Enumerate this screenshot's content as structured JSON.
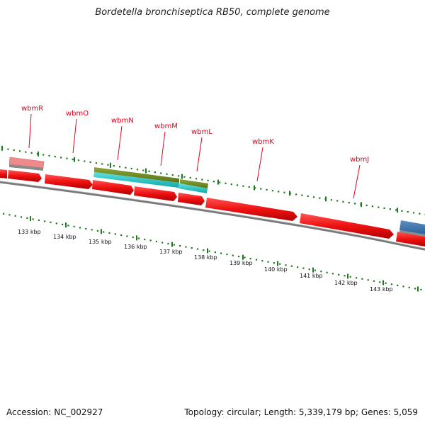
{
  "title": "Bordetella bronchiseptica RB50, complete genome",
  "footer": {
    "accession": "Accession: NC_002927",
    "summary": "Topology: circular; Length: 5,339,179 bp; Genes: 5,059"
  },
  "gene_labels": [
    "wbmR",
    "wbmO",
    "wbmN",
    "wbmM",
    "wbmL",
    "wbmK",
    "wbmJ"
  ],
  "kbp_ticks": [
    "133 kbp",
    "134 kbp",
    "135 kbp",
    "136 kbp",
    "137 kbp",
    "138 kbp",
    "139 kbp",
    "140 kbp",
    "141 kbp",
    "142 kbp",
    "143 kbp"
  ],
  "colors": {
    "cds": "#ee1111",
    "cds_edge": "#a00000",
    "backbone": "#7a7a7a",
    "tick_green": "#1f7a1f",
    "label_red": "#e3001b",
    "pink_feature": "#f08a8a",
    "olive_feature": "#6f8a1a",
    "cyan_feature": "#22c8c8",
    "blue_feature": "#3f78b0"
  }
}
